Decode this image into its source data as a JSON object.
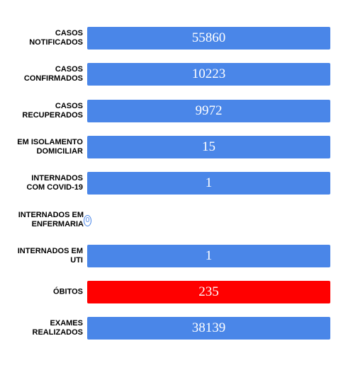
{
  "rows": [
    {
      "label_lines": [
        "CASOS",
        "NOTIFICADOS"
      ],
      "value": "55860",
      "display": "bar",
      "color": "#4a86e8"
    },
    {
      "label_lines": [
        "CASOS",
        "CONFIRMADOS"
      ],
      "value": "10223",
      "display": "bar",
      "color": "#4a86e8"
    },
    {
      "label_lines": [
        "CASOS",
        "RECUPERADOS"
      ],
      "value": "9972",
      "display": "bar",
      "color": "#4a86e8"
    },
    {
      "label_lines": [
        "EM ISOLAMENTO",
        "DOMICILIAR"
      ],
      "value": "15",
      "display": "bar",
      "color": "#4a86e8"
    },
    {
      "label_lines": [
        "INTERNADOS",
        "COM COVID-19"
      ],
      "value": "1",
      "display": "bar",
      "color": "#4a86e8"
    },
    {
      "label_lines": [
        "INTERNADOS EM",
        "ENFERMARIA"
      ],
      "value": "0",
      "display": "badge",
      "color": "#4a86e8"
    },
    {
      "label_lines": [
        "INTERNADOS EM",
        "UTI"
      ],
      "value": "1",
      "display": "bar",
      "color": "#4a86e8"
    },
    {
      "label_lines": [
        "ÓBITOS"
      ],
      "value": "235",
      "display": "bar",
      "color": "#ff0000"
    },
    {
      "label_lines": [
        "EXAMES",
        "REALIZADOS"
      ],
      "value": "38139",
      "display": "bar",
      "color": "#4a86e8"
    }
  ]
}
